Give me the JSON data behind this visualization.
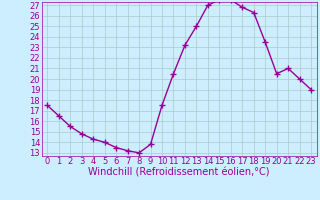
{
  "x": [
    0,
    1,
    2,
    3,
    4,
    5,
    6,
    7,
    8,
    9,
    10,
    11,
    12,
    13,
    14,
    15,
    16,
    17,
    18,
    19,
    20,
    21,
    22,
    23
  ],
  "y": [
    17.5,
    16.5,
    15.5,
    14.8,
    14.3,
    14.0,
    13.5,
    13.2,
    13.0,
    13.8,
    17.5,
    20.5,
    23.2,
    25.0,
    27.0,
    27.5,
    27.5,
    26.8,
    26.3,
    23.5,
    20.5,
    21.0,
    20.0,
    19.0
  ],
  "color": "#990099",
  "bg_color": "#cceeff",
  "grid_color": "#aacccc",
  "xlabel": "Windchill (Refroidissement éolien,°C)",
  "ylim_min": 13,
  "ylim_max": 27,
  "xlim_min": 0,
  "xlim_max": 23,
  "yticks": [
    13,
    14,
    15,
    16,
    17,
    18,
    19,
    20,
    21,
    22,
    23,
    24,
    25,
    26,
    27
  ],
  "xticks": [
    0,
    1,
    2,
    3,
    4,
    5,
    6,
    7,
    8,
    9,
    10,
    11,
    12,
    13,
    14,
    15,
    16,
    17,
    18,
    19,
    20,
    21,
    22,
    23
  ],
  "marker": "+",
  "linewidth": 1.0,
  "markersize": 4,
  "markeredgewidth": 1.0,
  "xlabel_fontsize": 7,
  "tick_fontsize": 6
}
